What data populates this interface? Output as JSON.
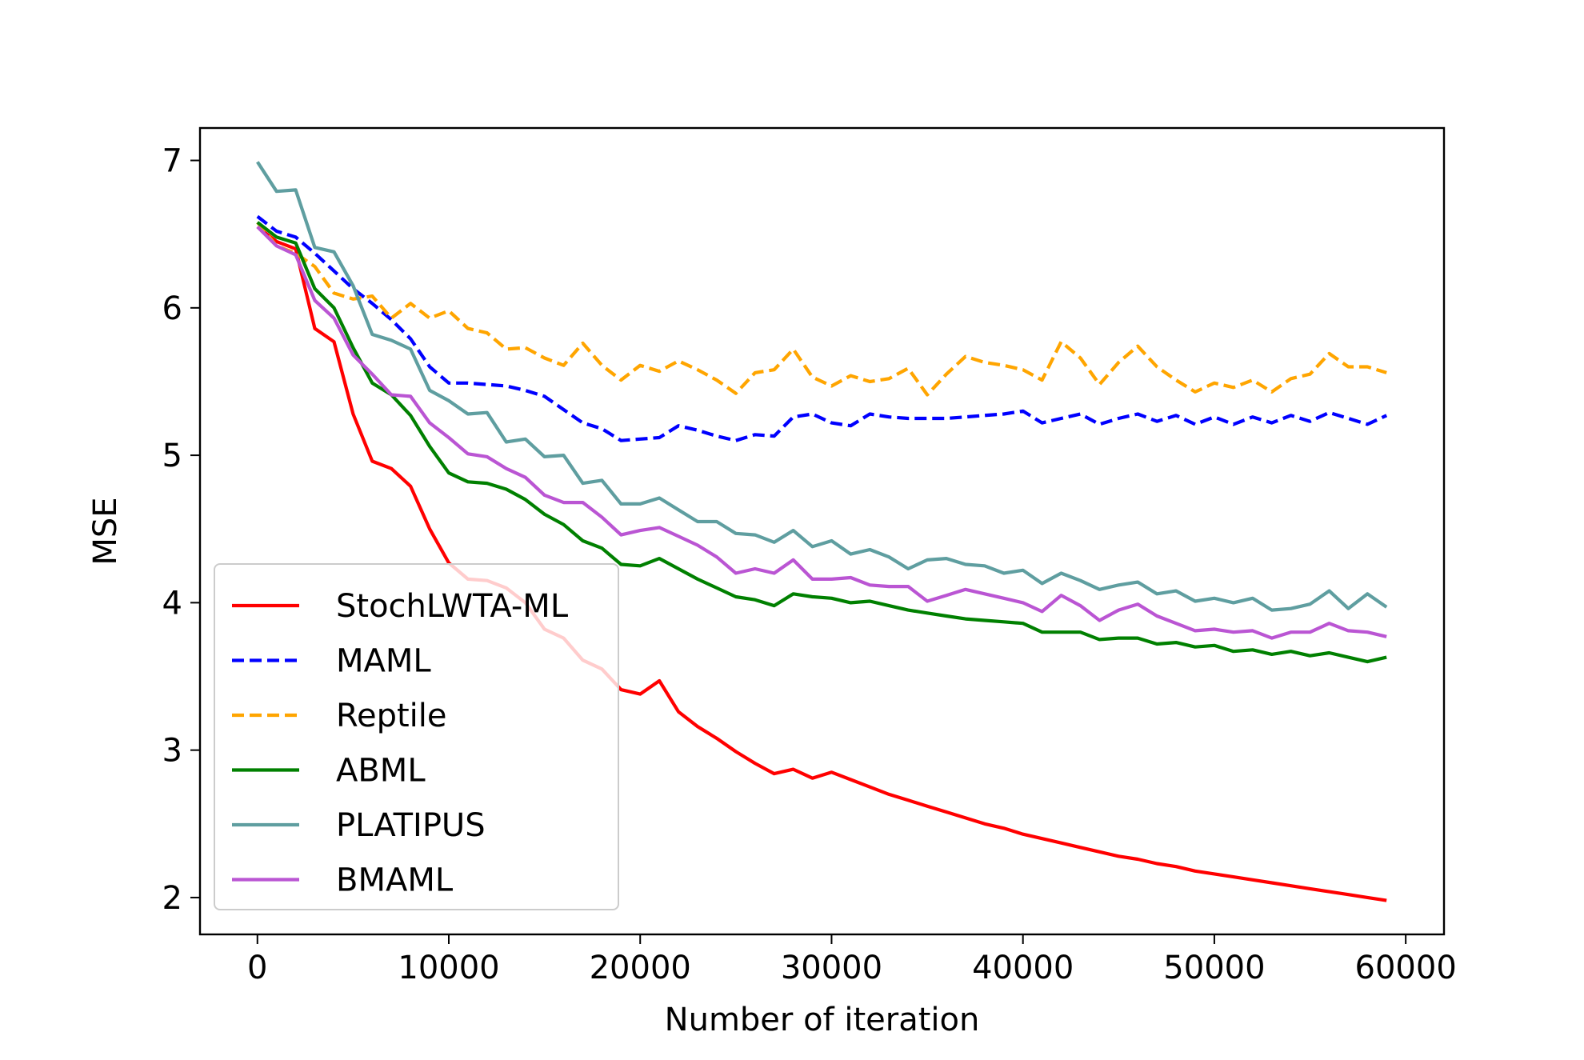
{
  "chart_data": {
    "type": "line",
    "title": "",
    "xlabel": "Number of iteration",
    "ylabel": "MSE",
    "xlim": [
      -3000,
      62000
    ],
    "ylim": [
      1.75,
      7.22
    ],
    "xticks": [
      0,
      10000,
      20000,
      30000,
      40000,
      50000,
      60000
    ],
    "xtick_labels": [
      "0",
      "10000",
      "20000",
      "30000",
      "40000",
      "50000",
      "60000"
    ],
    "yticks": [
      2,
      3,
      4,
      5,
      6,
      7
    ],
    "ytick_labels": [
      "2",
      "3",
      "4",
      "5",
      "6",
      "7"
    ],
    "grid": false,
    "legend_position": "lower-left",
    "x": [
      0,
      1000,
      2000,
      3000,
      4000,
      5000,
      6000,
      7000,
      8000,
      9000,
      10000,
      11000,
      12000,
      13000,
      14000,
      15000,
      16000,
      17000,
      18000,
      19000,
      20000,
      21000,
      22000,
      23000,
      24000,
      25000,
      26000,
      27000,
      28000,
      29000,
      30000,
      31000,
      32000,
      33000,
      34000,
      35000,
      36000,
      37000,
      38000,
      39000,
      40000,
      41000,
      42000,
      43000,
      44000,
      45000,
      46000,
      47000,
      48000,
      49000,
      50000,
      51000,
      52000,
      53000,
      54000,
      55000,
      56000,
      57000,
      58000,
      59000
    ],
    "series": [
      {
        "name": "StochLWTA-ML",
        "color": "#ff0000",
        "dash": "solid",
        "values": [
          6.55,
          6.45,
          6.4,
          5.86,
          5.77,
          5.28,
          4.96,
          4.91,
          4.79,
          4.5,
          4.27,
          4.16,
          4.15,
          4.1,
          4.0,
          3.82,
          3.76,
          3.61,
          3.55,
          3.41,
          3.38,
          3.47,
          3.26,
          3.16,
          3.08,
          2.99,
          2.91,
          2.84,
          2.87,
          2.81,
          2.85,
          2.8,
          2.75,
          2.7,
          2.66,
          2.62,
          2.58,
          2.54,
          2.5,
          2.47,
          2.43,
          2.4,
          2.37,
          2.34,
          2.31,
          2.28,
          2.26,
          2.23,
          2.21,
          2.18,
          2.16,
          2.14,
          2.12,
          2.1,
          2.08,
          2.06,
          2.04,
          2.02,
          2.0,
          1.98
        ]
      },
      {
        "name": "MAML",
        "color": "#0000ff",
        "dash": "dashed",
        "values": [
          6.62,
          6.52,
          6.48,
          6.37,
          6.25,
          6.13,
          6.03,
          5.92,
          5.79,
          5.6,
          5.49,
          5.49,
          5.48,
          5.47,
          5.44,
          5.4,
          5.31,
          5.22,
          5.18,
          5.1,
          5.11,
          5.12,
          5.2,
          5.17,
          5.13,
          5.1,
          5.14,
          5.13,
          5.26,
          5.28,
          5.22,
          5.2,
          5.28,
          5.26,
          5.25,
          5.25,
          5.25,
          5.26,
          5.27,
          5.28,
          5.3,
          5.22,
          5.25,
          5.28,
          5.21,
          5.25,
          5.28,
          5.23,
          5.27,
          5.21,
          5.26,
          5.21,
          5.26,
          5.22,
          5.27,
          5.23,
          5.29,
          5.25,
          5.21,
          5.27
        ]
      },
      {
        "name": "Reptile",
        "color": "#ffa500",
        "dash": "dashed",
        "values": [
          6.58,
          6.42,
          6.37,
          6.28,
          6.1,
          6.06,
          6.08,
          5.93,
          6.03,
          5.93,
          5.98,
          5.86,
          5.83,
          5.72,
          5.73,
          5.66,
          5.61,
          5.76,
          5.61,
          5.51,
          5.61,
          5.57,
          5.64,
          5.58,
          5.51,
          5.42,
          5.56,
          5.58,
          5.72,
          5.53,
          5.47,
          5.54,
          5.5,
          5.52,
          5.59,
          5.41,
          5.55,
          5.67,
          5.63,
          5.61,
          5.58,
          5.51,
          5.77,
          5.66,
          5.48,
          5.63,
          5.74,
          5.6,
          5.51,
          5.43,
          5.49,
          5.46,
          5.51,
          5.43,
          5.52,
          5.55,
          5.69,
          5.6,
          5.6,
          5.56
        ]
      },
      {
        "name": "ABML",
        "color": "#008000",
        "dash": "solid",
        "values": [
          6.58,
          6.48,
          6.44,
          6.13,
          6.0,
          5.73,
          5.49,
          5.41,
          5.27,
          5.06,
          4.88,
          4.82,
          4.81,
          4.77,
          4.7,
          4.6,
          4.53,
          4.42,
          4.37,
          4.26,
          4.25,
          4.3,
          4.23,
          4.16,
          4.1,
          4.04,
          4.02,
          3.98,
          4.06,
          4.04,
          4.03,
          4.0,
          4.01,
          3.98,
          3.95,
          3.93,
          3.91,
          3.89,
          3.88,
          3.87,
          3.86,
          3.8,
          3.8,
          3.8,
          3.75,
          3.76,
          3.76,
          3.72,
          3.73,
          3.7,
          3.71,
          3.67,
          3.68,
          3.65,
          3.67,
          3.64,
          3.66,
          3.63,
          3.6,
          3.63
        ]
      },
      {
        "name": "PLATIPUS",
        "color": "#5f9ea0",
        "dash": "solid",
        "values": [
          6.99,
          6.79,
          6.8,
          6.41,
          6.38,
          6.15,
          5.82,
          5.78,
          5.72,
          5.44,
          5.37,
          5.28,
          5.29,
          5.09,
          5.11,
          4.99,
          5.0,
          4.81,
          4.83,
          4.67,
          4.67,
          4.71,
          4.63,
          4.55,
          4.55,
          4.47,
          4.46,
          4.41,
          4.49,
          4.38,
          4.42,
          4.33,
          4.36,
          4.31,
          4.23,
          4.29,
          4.3,
          4.26,
          4.25,
          4.2,
          4.22,
          4.13,
          4.2,
          4.15,
          4.09,
          4.12,
          4.14,
          4.06,
          4.08,
          4.01,
          4.03,
          4.0,
          4.03,
          3.95,
          3.96,
          3.99,
          4.08,
          3.96,
          4.06,
          3.97
        ]
      },
      {
        "name": "BMAML",
        "color": "#ba55d3",
        "dash": "solid",
        "values": [
          6.55,
          6.42,
          6.36,
          6.05,
          5.93,
          5.68,
          5.55,
          5.41,
          5.4,
          5.22,
          5.12,
          5.01,
          4.99,
          4.91,
          4.85,
          4.73,
          4.68,
          4.68,
          4.58,
          4.46,
          4.49,
          4.51,
          4.45,
          4.39,
          4.31,
          4.2,
          4.23,
          4.2,
          4.29,
          4.16,
          4.16,
          4.17,
          4.12,
          4.11,
          4.11,
          4.01,
          4.05,
          4.09,
          4.06,
          4.03,
          4.0,
          3.94,
          4.05,
          3.98,
          3.88,
          3.95,
          3.99,
          3.91,
          3.86,
          3.81,
          3.82,
          3.8,
          3.81,
          3.76,
          3.8,
          3.8,
          3.86,
          3.81,
          3.8,
          3.77
        ]
      }
    ]
  }
}
